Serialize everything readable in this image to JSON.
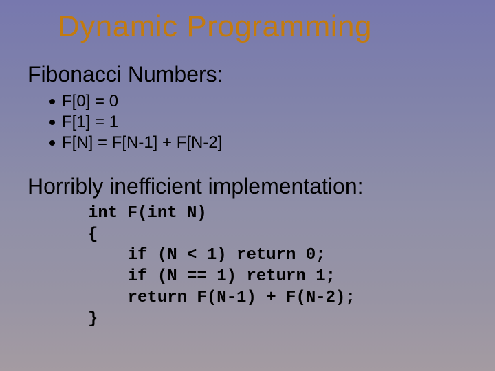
{
  "title": {
    "text": "Dynamic Programming",
    "color": "#c47b0e",
    "fontsize": 44
  },
  "section1": {
    "heading": "Fibonacci Numbers:",
    "heading_fontsize": 32,
    "heading_color": "#000000",
    "bullets": [
      {
        "text": "F[0] = 0"
      },
      {
        "text": "F[1] = 1"
      },
      {
        "text": "F[N] = F[N-1] + F[N-2]"
      }
    ],
    "bullet_fontsize": 24,
    "bullet_color": "#000000",
    "bullet_dot_size": 8
  },
  "section2": {
    "heading": "Horribly inefficient implementation:",
    "heading_fontsize": 32,
    "heading_color": "#000000",
    "code_lines": [
      "int F(int N)",
      "{",
      "    if (N < 1) return 0;",
      "    if (N == 1) return 1;",
      "    return F(N-1) + F(N-2);",
      "}"
    ],
    "code_fontsize": 24,
    "code_color": "#000000"
  },
  "background": {
    "gradient_top": "#7778ae",
    "gradient_bottom": "#a49ba2"
  }
}
